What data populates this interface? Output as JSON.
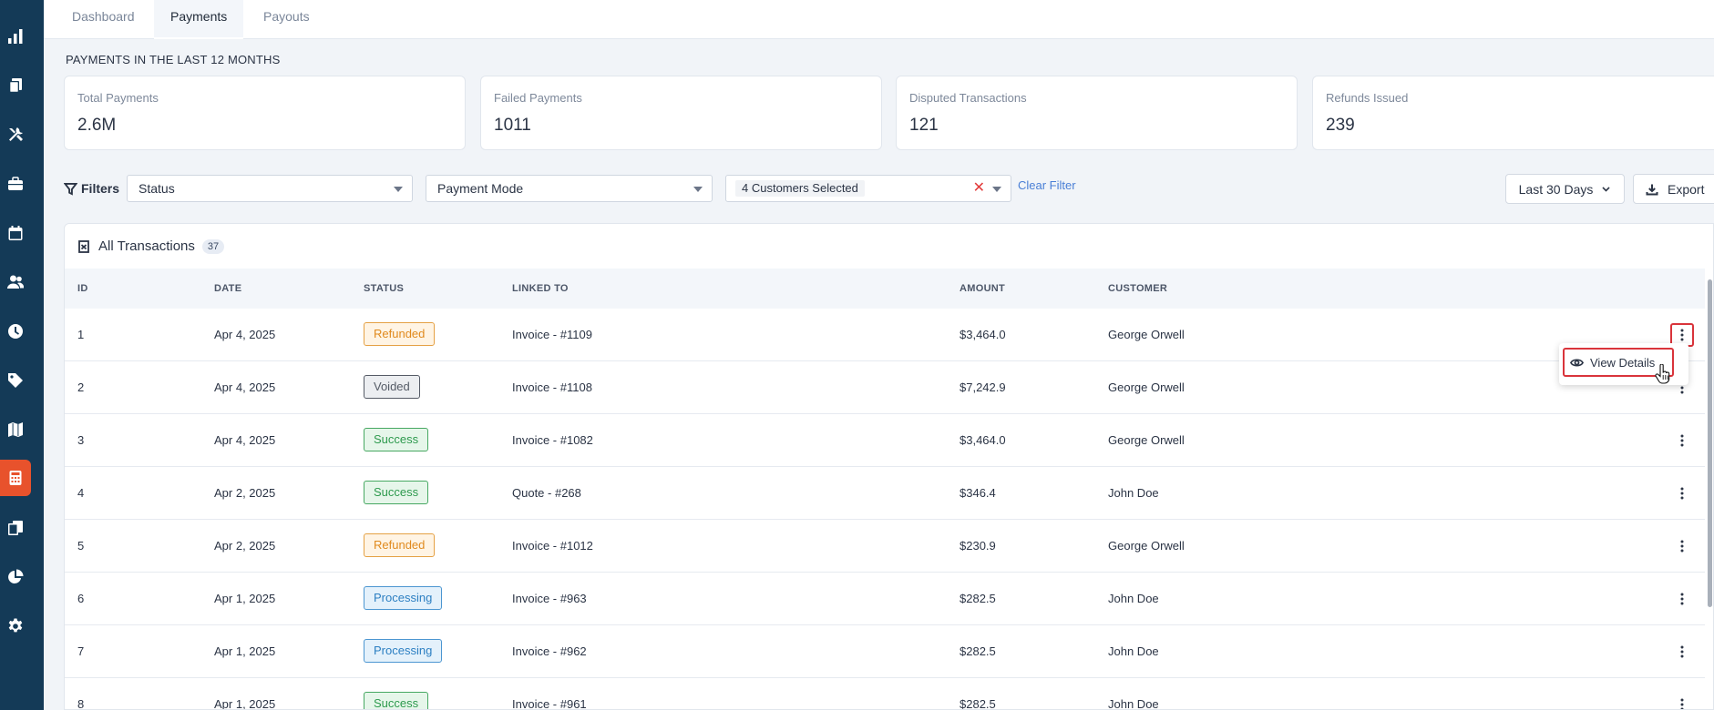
{
  "sidebar": {
    "icons": [
      "bar-chart-icon",
      "documents-icon",
      "tools-icon",
      "briefcase-icon",
      "calendar-icon",
      "users-icon",
      "clock-icon",
      "tag-icon",
      "map-icon",
      "calculator-icon",
      "files-icon",
      "pie-chart-icon",
      "gear-icon"
    ],
    "active": "calculator-icon",
    "active_color": "#e8522c",
    "background": "#143a57"
  },
  "tabs": [
    {
      "label": "Dashboard"
    },
    {
      "label": "Payments"
    },
    {
      "label": "Payouts"
    }
  ],
  "section_title": "PAYMENTS IN THE LAST 12 MONTHS",
  "stats": [
    {
      "label": "Total Payments",
      "value": "2.6M"
    },
    {
      "label": "Failed Payments",
      "value": "1011"
    },
    {
      "label": "Disputed Transactions",
      "value": "121"
    },
    {
      "label": "Refunds Issued",
      "value": "239"
    }
  ],
  "filters": {
    "label": "Filters",
    "status_placeholder": "Status",
    "payment_mode_placeholder": "Payment Mode",
    "customers_chip": "4 Customers Selected",
    "clear_filter": "Clear Filter",
    "date_range": "Last 30 Days",
    "export": "Export"
  },
  "table": {
    "title": "All Transactions",
    "count": "37",
    "columns": {
      "id": "ID",
      "date": "DATE",
      "status": "STATUS",
      "linked_to": "LINKED TO",
      "amount": "AMOUNT",
      "customer": "CUSTOMER"
    },
    "rows": [
      {
        "id": "1",
        "date": "Apr 4, 2025",
        "status": "Refunded",
        "linked_to": "Invoice - #1109",
        "amount": "$3,464.0",
        "customer": "George Orwell"
      },
      {
        "id": "2",
        "date": "Apr 4, 2025",
        "status": "Voided",
        "linked_to": "Invoice - #1108",
        "amount": "$7,242.9",
        "customer": "George Orwell"
      },
      {
        "id": "3",
        "date": "Apr 4, 2025",
        "status": "Success",
        "linked_to": "Invoice - #1082",
        "amount": "$3,464.0",
        "customer": "George Orwell"
      },
      {
        "id": "4",
        "date": "Apr 2, 2025",
        "status": "Success",
        "linked_to": "Quote - #268",
        "amount": "$346.4",
        "customer": "John Doe"
      },
      {
        "id": "5",
        "date": "Apr 2, 2025",
        "status": "Refunded",
        "linked_to": "Invoice - #1012",
        "amount": "$230.9",
        "customer": "George Orwell"
      },
      {
        "id": "6",
        "date": "Apr 1, 2025",
        "status": "Processing",
        "linked_to": "Invoice - #963",
        "amount": "$282.5",
        "customer": "John Doe"
      },
      {
        "id": "7",
        "date": "Apr 1, 2025",
        "status": "Processing",
        "linked_to": "Invoice - #962",
        "amount": "$282.5",
        "customer": "John Doe"
      },
      {
        "id": "8",
        "date": "Apr 1, 2025",
        "status": "Success",
        "linked_to": "Invoice - #961",
        "amount": "$282.5",
        "customer": "John Doe"
      }
    ]
  },
  "row_menu": {
    "view_details": "View Details"
  },
  "status_colors": {
    "Refunded": "#e08a1e",
    "Voided": "#555b66",
    "Success": "#2e9a4e",
    "Processing": "#2c7fc2"
  },
  "highlight_color": "#d9343b",
  "link_color": "#4a7fd6"
}
